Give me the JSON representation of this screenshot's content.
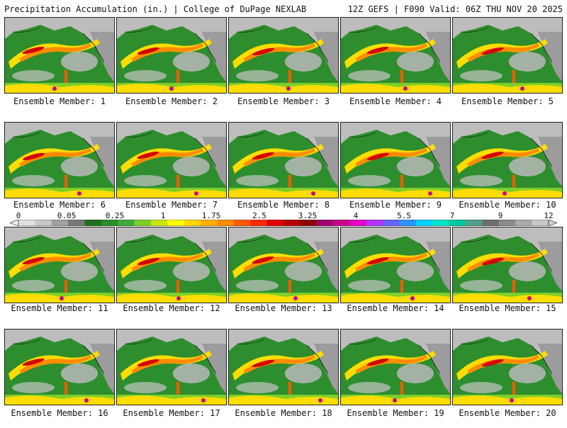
{
  "header": {
    "title_left": "Precipitation Accumulation (in.) | College of DuPage NEXLAB",
    "title_right": "12Z GEFS | F090 Valid: 06Z THU NOV 20 2025"
  },
  "members": [
    "Ensemble Member: 1",
    "Ensemble Member: 2",
    "Ensemble Member: 3",
    "Ensemble Member: 4",
    "Ensemble Member: 5",
    "Ensemble Member: 6",
    "Ensemble Member: 7",
    "Ensemble Member: 8",
    "Ensemble Member: 9",
    "Ensemble Member: 10",
    "Ensemble Member: 11",
    "Ensemble Member: 12",
    "Ensemble Member: 13",
    "Ensemble Member: 14",
    "Ensemble Member: 15",
    "Ensemble Member: 16",
    "Ensemble Member: 17",
    "Ensemble Member: 18",
    "Ensemble Member: 19",
    "Ensemble Member: 20"
  ],
  "colorbar": {
    "tick_labels": [
      "0",
      "0.05",
      "0.25",
      "1",
      "1.75",
      "2.5",
      "3.25",
      "4",
      "5.5",
      "7",
      "9",
      "12"
    ],
    "colors": [
      "#e0e0e0",
      "#c8c8c8",
      "#a0a0a0",
      "#787878",
      "#1e6e1e",
      "#2a8c2a",
      "#3caa3c",
      "#7ccf2a",
      "#c8e614",
      "#ffff00",
      "#ffd700",
      "#ffb000",
      "#ff8c00",
      "#ff5a00",
      "#ff2a00",
      "#e00000",
      "#b40000",
      "#8c0000",
      "#a0006e",
      "#c8008c",
      "#e600c8",
      "#b432ff",
      "#6464ff",
      "#2896ff",
      "#00d2ff",
      "#00e6c8",
      "#00c8a0",
      "#50a08c",
      "#6e6e6e",
      "#8c8c8c",
      "#aaaaaa",
      "#c8c8c8"
    ]
  }
}
